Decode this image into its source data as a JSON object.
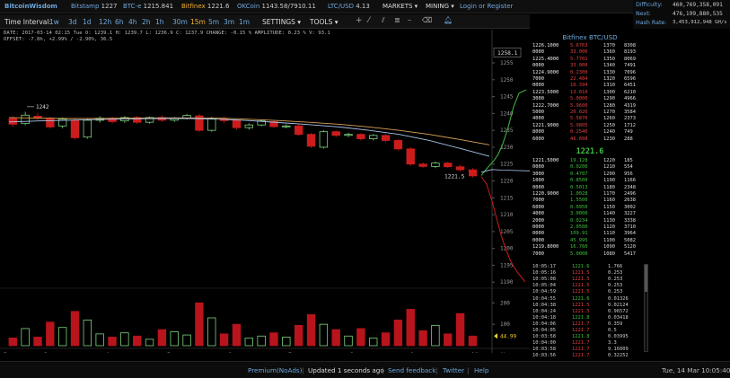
{
  "header": {
    "logo": "BitcoinWisdom",
    "tickers": [
      {
        "name": "Bitstamp",
        "value": "1227",
        "name_color": "#6ea8dc",
        "value_color": "#cccccc"
      },
      {
        "name": "BTC-e",
        "value": "1215.841",
        "name_color": "#6ea8dc",
        "value_color": "#cccccc"
      },
      {
        "name": "Bitfinex",
        "value": "1221.6",
        "name_color": "#f0b030",
        "value_color": "#cccccc"
      },
      {
        "name": "OKCoin",
        "value": "1143.58/7910.11",
        "name_color": "#6ea8dc",
        "value_color": "#cccccc"
      },
      {
        "name": "LTC/USD",
        "value": "4.13",
        "name_color": "#6ea8dc",
        "value_color": "#cccccc"
      }
    ],
    "markets_label": "MARKETS ▾",
    "mining_label": "MINING ▾",
    "login_label": "Login or Register"
  },
  "stats": {
    "difficulty_label": "Difficulty:",
    "difficulty_value": "460,769,358,091",
    "next_label": "Next:",
    "next_value": "476,199,880,535",
    "hashrate_label": "Hash Rate:",
    "hashrate_value": "3,453,912,948 GH/s"
  },
  "toolbar": {
    "time_interval_label": "Time Interval:",
    "intervals": [
      "1w",
      "3d",
      "1d",
      "12h",
      "6h",
      "4h",
      "2h",
      "1h",
      "30m",
      "15m",
      "5m",
      "3m",
      "1m"
    ],
    "active_interval": "15m",
    "settings_label": "SETTINGS ▾",
    "tools_label": "TOOLS ▾"
  },
  "chart_info": {
    "line1": "DATE: 2017-03-14 02:15 Tue    O: 1239.1    H: 1239.7    L: 1236.9    C: 1237.9    CHANGE: -0.15 %    AMPLITUDE: 0.23 %    V: 93.1",
    "line2": "OFFSET: -7.8h, +2.99% / -2.90%, 36.5"
  },
  "chart_data": {
    "type": "candlestick",
    "price_ticks": [
      1255,
      1250,
      1245,
      1240,
      1235,
      1230,
      1225,
      1220,
      1215,
      1210,
      1205,
      1200,
      1195,
      1190
    ],
    "volume_ticks": [
      200,
      100
    ],
    "price_cursor": "1258.1",
    "last_price_label": "1221.5",
    "high_marker": "1242",
    "volume_marker": "44.99",
    "x_labels": [
      "5",
      "3",
      "4",
      "5",
      "6",
      "7",
      "8",
      "9",
      "10",
      "Now"
    ],
    "candles": [
      {
        "o": 1238.5,
        "c": 1236.8,
        "h": 1239.2,
        "l": 1236.0,
        "v": 36
      },
      {
        "o": 1237.0,
        "c": 1239.5,
        "h": 1240.5,
        "l": 1236.5,
        "v": 80
      },
      {
        "o": 1239.2,
        "c": 1238.6,
        "h": 1240.2,
        "l": 1238.0,
        "v": 40
      },
      {
        "o": 1238.6,
        "c": 1236.0,
        "h": 1239.0,
        "l": 1235.5,
        "v": 110
      },
      {
        "o": 1236.3,
        "c": 1238.3,
        "h": 1238.8,
        "l": 1235.6,
        "v": 85
      },
      {
        "o": 1238.0,
        "c": 1232.8,
        "h": 1238.5,
        "l": 1232.3,
        "v": 160
      },
      {
        "o": 1233.0,
        "c": 1238.0,
        "h": 1238.5,
        "l": 1232.5,
        "v": 120
      },
      {
        "o": 1238.0,
        "c": 1238.6,
        "h": 1239.2,
        "l": 1237.3,
        "v": 55
      },
      {
        "o": 1238.6,
        "c": 1237.6,
        "h": 1239.0,
        "l": 1237.0,
        "v": 40
      },
      {
        "o": 1237.8,
        "c": 1238.8,
        "h": 1239.2,
        "l": 1237.2,
        "v": 60
      },
      {
        "o": 1238.8,
        "c": 1237.4,
        "h": 1239.3,
        "l": 1236.9,
        "v": 45
      },
      {
        "o": 1237.4,
        "c": 1238.8,
        "h": 1239.1,
        "l": 1237.0,
        "v": 30
      },
      {
        "o": 1238.8,
        "c": 1238.0,
        "h": 1239.4,
        "l": 1237.5,
        "v": 75
      },
      {
        "o": 1238.0,
        "c": 1238.6,
        "h": 1239.0,
        "l": 1237.5,
        "v": 65
      },
      {
        "o": 1238.6,
        "c": 1239.4,
        "h": 1239.9,
        "l": 1238.2,
        "v": 50
      },
      {
        "o": 1239.3,
        "c": 1235.0,
        "h": 1239.8,
        "l": 1234.6,
        "v": 200
      },
      {
        "o": 1235.0,
        "c": 1238.5,
        "h": 1239.0,
        "l": 1234.6,
        "v": 130
      },
      {
        "o": 1238.5,
        "c": 1237.9,
        "h": 1239.0,
        "l": 1237.2,
        "v": 55
      },
      {
        "o": 1237.9,
        "c": 1235.8,
        "h": 1238.3,
        "l": 1235.2,
        "v": 100
      },
      {
        "o": 1235.8,
        "c": 1236.6,
        "h": 1237.1,
        "l": 1235.2,
        "v": 35
      },
      {
        "o": 1236.6,
        "c": 1237.8,
        "h": 1238.2,
        "l": 1236.2,
        "v": 45
      },
      {
        "o": 1237.6,
        "c": 1236.1,
        "h": 1238.0,
        "l": 1235.7,
        "v": 60
      },
      {
        "o": 1236.1,
        "c": 1236.3,
        "h": 1236.8,
        "l": 1235.6,
        "v": 40
      },
      {
        "o": 1236.3,
        "c": 1233.8,
        "h": 1236.8,
        "l": 1233.4,
        "v": 95
      },
      {
        "o": 1233.8,
        "c": 1230.3,
        "h": 1234.2,
        "l": 1229.8,
        "v": 145
      },
      {
        "o": 1230.0,
        "c": 1234.6,
        "h": 1235.0,
        "l": 1229.6,
        "v": 100
      },
      {
        "o": 1234.6,
        "c": 1233.5,
        "h": 1235.0,
        "l": 1233.0,
        "v": 75
      },
      {
        "o": 1233.5,
        "c": 1233.8,
        "h": 1234.3,
        "l": 1233.0,
        "v": 45
      },
      {
        "o": 1233.8,
        "c": 1232.5,
        "h": 1234.1,
        "l": 1232.0,
        "v": 80
      },
      {
        "o": 1232.5,
        "c": 1233.5,
        "h": 1233.9,
        "l": 1232.0,
        "v": 35
      },
      {
        "o": 1233.5,
        "c": 1232.0,
        "h": 1233.9,
        "l": 1231.5,
        "v": 60
      },
      {
        "o": 1232.0,
        "c": 1229.5,
        "h": 1232.4,
        "l": 1229.0,
        "v": 120
      },
      {
        "o": 1229.5,
        "c": 1225.0,
        "h": 1230.0,
        "l": 1224.5,
        "v": 170
      },
      {
        "o": 1225.0,
        "c": 1224.3,
        "h": 1225.5,
        "l": 1223.8,
        "v": 70
      },
      {
        "o": 1224.3,
        "c": 1225.3,
        "h": 1225.8,
        "l": 1223.8,
        "v": 95
      },
      {
        "o": 1225.3,
        "c": 1224.2,
        "h": 1225.7,
        "l": 1223.8,
        "v": 55
      },
      {
        "o": 1224.2,
        "c": 1223.3,
        "h": 1224.8,
        "l": 1222.8,
        "v": 150
      },
      {
        "o": 1223.3,
        "c": 1221.5,
        "h": 1223.8,
        "l": 1221.0,
        "v": 45
      }
    ],
    "ma_fast": [
      1237.5,
      1237.8,
      1238.0,
      1238.2,
      1238.4,
      1238.5,
      1238.5,
      1238.3,
      1237.9,
      1237.3,
      1236.7,
      1236.0,
      1235.0,
      1233.8,
      1232.0,
      1229.7,
      1227.3
    ],
    "ma_slow": [
      1238.8,
      1238.6,
      1238.5,
      1238.5,
      1238.6,
      1238.7,
      1238.7,
      1238.6,
      1238.3,
      1237.9,
      1237.4,
      1236.8,
      1236.0,
      1235.0,
      1233.8,
      1232.3,
      1230.7
    ],
    "price_range": [
      1189,
      1259
    ],
    "volume_range": [
      0,
      260
    ]
  },
  "orderbook": {
    "title": "Bitfinex BTC/USD",
    "last_price": "1221.6",
    "asks": [
      [
        "1226.1000",
        "5.6763",
        "1370",
        "8308"
      ],
      [
        "0000",
        "33.000",
        "1360",
        "8193"
      ],
      [
        "1225.4000",
        "5.7701",
        "1350",
        "8069"
      ],
      [
        "0000",
        "33.000",
        "1340",
        "7491"
      ],
      [
        "1224.9000",
        "0.2300",
        "1330",
        "7096"
      ],
      [
        "7000",
        "22.484",
        "1320",
        "6596"
      ],
      [
        "0000",
        "10.394",
        "1310",
        "6451"
      ],
      [
        "1223.5000",
        "13.010",
        "1300",
        "6210"
      ],
      [
        "3000",
        "5.0000",
        "1290",
        "4966"
      ],
      [
        "1222.7000",
        "5.9600",
        "1280",
        "4319"
      ],
      [
        "5000",
        "20.026",
        "1270",
        "3584"
      ],
      [
        "4000",
        "5.5876",
        "1260",
        "2373"
      ],
      [
        "1221.9000",
        "5.9805",
        "1250",
        "1712"
      ],
      [
        "8000",
        "0.2540",
        "1240",
        "749"
      ],
      [
        "6000",
        "46.608",
        "1230",
        "288"
      ]
    ],
    "bids": [
      [
        "1221.5000",
        "19.128",
        "1220",
        "185"
      ],
      [
        "0000",
        "0.0200",
        "1210",
        "554"
      ],
      [
        "3000",
        "0.4707",
        "1200",
        "956"
      ],
      [
        "1000",
        "0.8500",
        "1190",
        "1166"
      ],
      [
        "0000",
        "0.5013",
        "1180",
        "2348"
      ],
      [
        "1220.9000",
        "1.0028",
        "1170",
        "2496"
      ],
      [
        "7000",
        "1.5500",
        "1160",
        "2638"
      ],
      [
        "6000",
        "0.0950",
        "1150",
        "3002"
      ],
      [
        "4000",
        "3.0000",
        "1140",
        "3227"
      ],
      [
        "2000",
        "0.0234",
        "1130",
        "3338"
      ],
      [
        "0000",
        "2.0500",
        "1120",
        "3710"
      ],
      [
        "0000",
        "109.91",
        "1110",
        "3964"
      ],
      [
        "0000",
        "45.995",
        "1100",
        "5082"
      ],
      [
        "1219.8000",
        "16.760",
        "1090",
        "5120"
      ],
      [
        "7000",
        "5.0000",
        "1080",
        "5417"
      ]
    ]
  },
  "trades": [
    {
      "time": "10:05:17",
      "price": "1221.6",
      "amount": "1.766",
      "side": "buy"
    },
    {
      "time": "10:05:16",
      "price": "1221.5",
      "amount": "0.253",
      "side": "sell"
    },
    {
      "time": "10:05:08",
      "price": "1221.5",
      "amount": "0.253",
      "side": "sell"
    },
    {
      "time": "10:05:04",
      "price": "1221.5",
      "amount": "0.253",
      "side": "sell"
    },
    {
      "time": "10:04:59",
      "price": "1221.5",
      "amount": "0.253",
      "side": "sell"
    },
    {
      "time": "10:04:55",
      "price": "1221.6",
      "amount": "0.01326",
      "side": "buy"
    },
    {
      "time": "10:04:38",
      "price": "1221.5",
      "amount": "0.02124",
      "side": "sell"
    },
    {
      "time": "10:04:24",
      "price": "1221.5",
      "amount": "0.96572",
      "side": "sell"
    },
    {
      "time": "10:04:18",
      "price": "1221.8",
      "amount": "0.03418",
      "side": "buy"
    },
    {
      "time": "10:04:06",
      "price": "1221.7",
      "amount": "0.359",
      "side": "sell"
    },
    {
      "time": "10:04:05",
      "price": "1221.7",
      "amount": "0.5",
      "side": "sell"
    },
    {
      "time": "10:03:58",
      "price": "1221.8",
      "amount": "0.03995",
      "side": "buy"
    },
    {
      "time": "10:04:00",
      "price": "1221.7",
      "amount": "3.3",
      "side": "sell"
    },
    {
      "time": "10:03:58",
      "price": "1221.7",
      "amount": "9.16009",
      "side": "sell"
    },
    {
      "time": "10:03:56",
      "price": "1221.7",
      "amount": "0.32252",
      "side": "sell"
    }
  ],
  "footer": {
    "premium": "Premium(NoAds)",
    "updated": "Updated 1 seconds ago",
    "feedback": "Send feedback",
    "twitter": "Twitter",
    "help": "Help",
    "clock": "Tue, 14 Mar 10:05:40"
  },
  "colors": {
    "up": "#7ed37e",
    "down": "#cc1c1c",
    "vol_down": "#b8141c",
    "ma_fast": "#a9c4e8",
    "ma_slow": "#d9a15a",
    "ask": "#e04040",
    "bid": "#3ec03e"
  }
}
